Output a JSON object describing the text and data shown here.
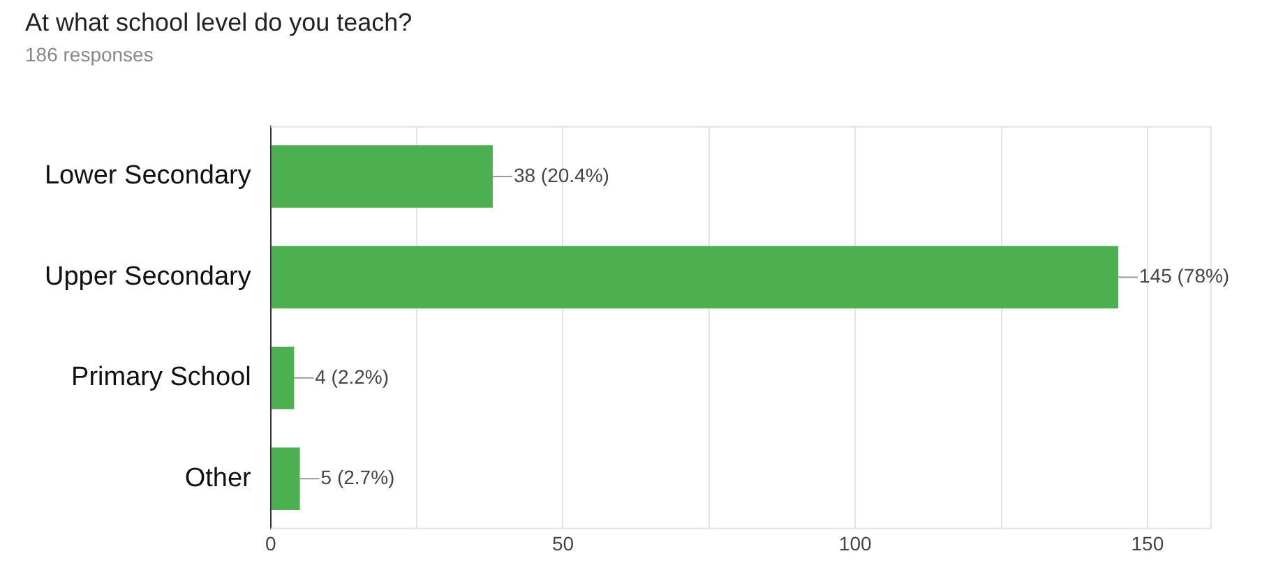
{
  "chart_data": {
    "type": "bar",
    "orientation": "horizontal",
    "title": "At what school level do you teach?",
    "subtitle": "186 responses",
    "categories": [
      "Lower Secondary",
      "Upper Secondary",
      "Primary School",
      "Other"
    ],
    "values": [
      38,
      145,
      4,
      5
    ],
    "color": "#4caf50",
    "value_labels": [
      "38 (20.4%)",
      "145 (78%)",
      "4 (2.2%)",
      "5 (2.7%)"
    ],
    "xlim": [
      0,
      161
    ],
    "xticks": [
      0,
      {
        "value": 25,
        "label": null
      },
      50,
      {
        "value": 75,
        "label": null
      },
      100,
      {
        "value": 125,
        "label": null
      },
      150
    ],
    "grid": "x"
  }
}
